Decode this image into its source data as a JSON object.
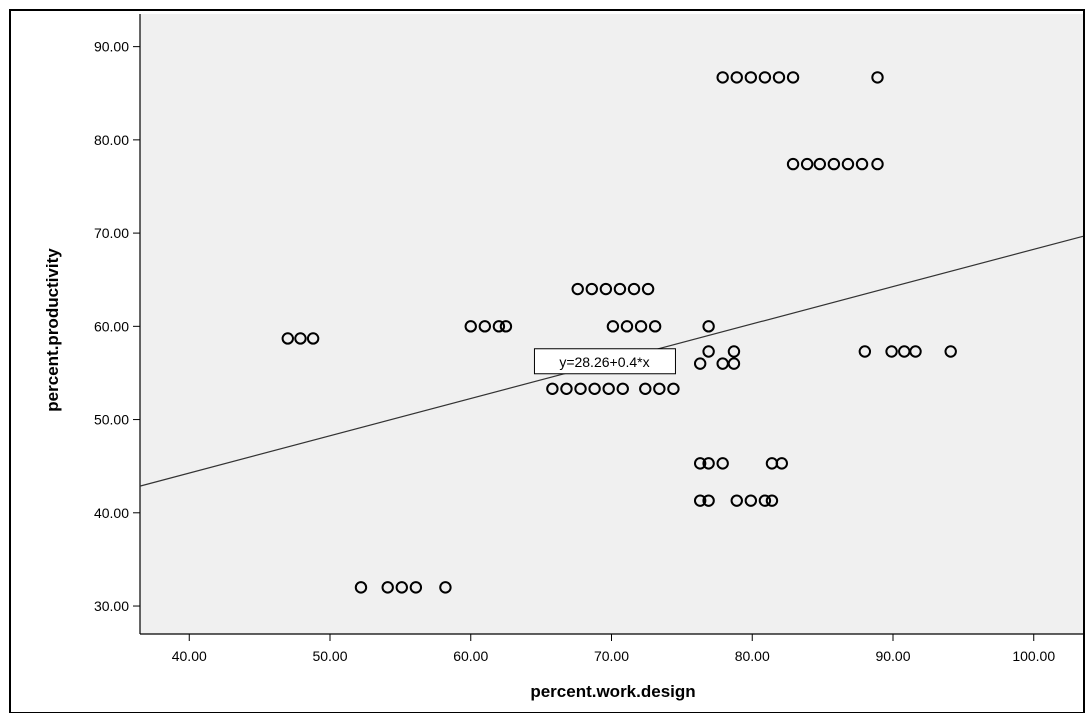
{
  "chart_data": {
    "type": "scatter",
    "title": "",
    "xlabel": "percent.work.design",
    "ylabel": "percent.productivity",
    "xlim": [
      36.5,
      103.5
    ],
    "ylim": [
      27.0,
      93.5
    ],
    "x_ticks": [
      "40.00",
      "50.00",
      "60.00",
      "70.00",
      "80.00",
      "90.00",
      "100.00"
    ],
    "y_ticks": [
      "30.00",
      "40.00",
      "50.00",
      "60.00",
      "70.00",
      "80.00",
      "90.00"
    ],
    "grid": false,
    "fit_line": {
      "label": "y=28.26+0.4*x",
      "intercept": 28.26,
      "slope": 0.4,
      "label_at": [
        69.5,
        56.2
      ]
    },
    "points": [
      [
        77.9,
        86.7
      ],
      [
        78.9,
        86.7
      ],
      [
        79.9,
        86.7
      ],
      [
        80.9,
        86.7
      ],
      [
        81.9,
        86.7
      ],
      [
        82.9,
        86.7
      ],
      [
        88.9,
        86.7
      ],
      [
        82.9,
        77.4
      ],
      [
        83.9,
        77.4
      ],
      [
        84.8,
        77.4
      ],
      [
        85.8,
        77.4
      ],
      [
        86.8,
        77.4
      ],
      [
        87.8,
        77.4
      ],
      [
        88.9,
        77.4
      ],
      [
        67.6,
        64.0
      ],
      [
        68.6,
        64.0
      ],
      [
        69.6,
        64.0
      ],
      [
        70.6,
        64.0
      ],
      [
        71.6,
        64.0
      ],
      [
        72.6,
        64.0
      ],
      [
        60.0,
        60.0
      ],
      [
        61.0,
        60.0
      ],
      [
        62.0,
        60.0
      ],
      [
        62.5,
        60.0
      ],
      [
        70.1,
        60.0
      ],
      [
        71.1,
        60.0
      ],
      [
        72.1,
        60.0
      ],
      [
        73.1,
        60.0
      ],
      [
        76.9,
        60.0
      ],
      [
        47.0,
        58.7
      ],
      [
        47.9,
        58.7
      ],
      [
        48.8,
        58.7
      ],
      [
        76.9,
        57.3
      ],
      [
        78.7,
        57.3
      ],
      [
        88.0,
        57.3
      ],
      [
        89.9,
        57.3
      ],
      [
        90.8,
        57.3
      ],
      [
        91.6,
        57.3
      ],
      [
        94.1,
        57.3
      ],
      [
        76.3,
        56.0
      ],
      [
        77.9,
        56.0
      ],
      [
        78.7,
        56.0
      ],
      [
        65.8,
        53.3
      ],
      [
        66.8,
        53.3
      ],
      [
        67.8,
        53.3
      ],
      [
        68.8,
        53.3
      ],
      [
        69.8,
        53.3
      ],
      [
        70.8,
        53.3
      ],
      [
        72.4,
        53.3
      ],
      [
        73.4,
        53.3
      ],
      [
        74.4,
        53.3
      ],
      [
        76.3,
        45.3
      ],
      [
        76.9,
        45.3
      ],
      [
        77.9,
        45.3
      ],
      [
        81.4,
        45.3
      ],
      [
        82.1,
        45.3
      ],
      [
        76.3,
        41.3
      ],
      [
        76.9,
        41.3
      ],
      [
        78.9,
        41.3
      ],
      [
        79.9,
        41.3
      ],
      [
        80.9,
        41.3
      ],
      [
        81.4,
        41.3
      ],
      [
        52.2,
        32.0
      ],
      [
        54.1,
        32.0
      ],
      [
        55.1,
        32.0
      ],
      [
        56.1,
        32.0
      ],
      [
        58.2,
        32.0
      ]
    ]
  }
}
